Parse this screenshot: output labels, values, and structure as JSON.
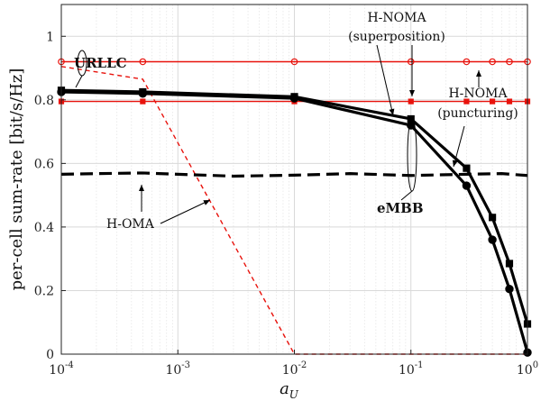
{
  "chart_data": {
    "type": "line",
    "xlabel": "a_U",
    "ylabel": "per-cell sum-rate [bit/s/Hz]",
    "xscale": "log",
    "xlim": [
      0.0001,
      1
    ],
    "ylim": [
      0,
      1.1
    ],
    "xticks": [
      0.0001,
      0.001,
      0.01,
      0.1,
      1
    ],
    "xtick_base": "10",
    "xtick_exponents": [
      "-4",
      "-3",
      "-2",
      "-1",
      "0"
    ],
    "yticks": [
      0,
      0.2,
      0.4,
      0.6,
      0.8,
      1
    ],
    "ytick_labels": [
      "0",
      "0.2",
      "0.4",
      "0.6",
      "0.8",
      "1"
    ],
    "grid": true,
    "series": [
      {
        "group": "URLLC",
        "scheme": "H-NOMA (superposition)",
        "color": "#e8120c",
        "style": "solid",
        "marker": "circle",
        "x": [
          0.0001,
          0.0005,
          0.01,
          0.1,
          0.3,
          0.5,
          0.7,
          1
        ],
        "y": [
          0.92,
          0.92,
          0.92,
          0.92,
          0.92,
          0.92,
          0.92,
          0.92
        ]
      },
      {
        "group": "URLLC",
        "scheme": "H-NOMA (puncturing)",
        "color": "#e8120c",
        "style": "solid",
        "marker": "square",
        "x": [
          0.0001,
          0.0005,
          0.01,
          0.1,
          0.3,
          0.5,
          0.7,
          1
        ],
        "y": [
          0.795,
          0.795,
          0.795,
          0.795,
          0.795,
          0.795,
          0.795,
          0.795
        ]
      },
      {
        "group": "URLLC",
        "scheme": "H-OMA",
        "color": "#e8120c",
        "style": "dashed",
        "marker": "none",
        "x": [
          0.0001,
          0.0005,
          0.01,
          0.02,
          1
        ],
        "y": [
          0.905,
          0.865,
          0.0,
          0.0,
          0.0
        ]
      },
      {
        "group": "eMBB",
        "scheme": "H-NOMA (superposition)",
        "color": "#000000",
        "style": "solid",
        "marker": "circle",
        "x": [
          0.0001,
          0.0005,
          0.01,
          0.1,
          0.3,
          0.5,
          0.7,
          1
        ],
        "y": [
          0.825,
          0.82,
          0.805,
          0.72,
          0.53,
          0.36,
          0.205,
          0.005
        ]
      },
      {
        "group": "eMBB",
        "scheme": "H-NOMA (puncturing)",
        "color": "#000000",
        "style": "solid",
        "marker": "square",
        "x": [
          0.0001,
          0.0005,
          0.01,
          0.1,
          0.3,
          0.5,
          0.7,
          1
        ],
        "y": [
          0.83,
          0.825,
          0.81,
          0.74,
          0.585,
          0.43,
          0.285,
          0.095
        ]
      },
      {
        "group": "eMBB",
        "scheme": "H-OMA",
        "color": "#000000",
        "style": "dashed",
        "marker": "none",
        "x": [
          0.0001,
          0.0002,
          0.0005,
          0.001,
          0.003,
          0.01,
          0.03,
          0.1,
          0.3,
          0.6,
          1
        ],
        "y": [
          0.566,
          0.568,
          0.57,
          0.566,
          0.56,
          0.563,
          0.568,
          0.562,
          0.566,
          0.568,
          0.562
        ]
      }
    ],
    "annotations": {
      "urllc": "URLLC",
      "embb": "eMBB",
      "hnoma_sup_line1": "H-NOMA",
      "hnoma_sup_line2": "(superposition)",
      "hnoma_punc_line1": "H-NOMA",
      "hnoma_punc_line2": "(puncturing)",
      "homa": "H-OMA"
    }
  }
}
